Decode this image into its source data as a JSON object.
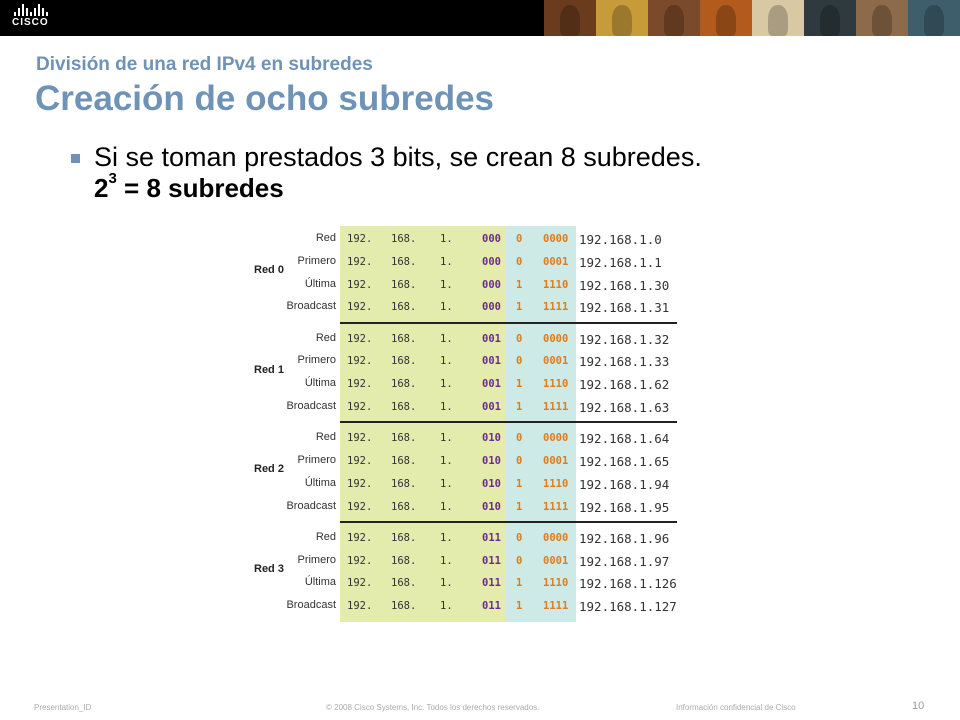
{
  "header": {
    "logo_text": "CISCO",
    "photos": [
      {
        "color": "#6b3b1e"
      },
      {
        "color": "#c79a3a"
      },
      {
        "color": "#7b4a2a"
      },
      {
        "color": "#b35a1d"
      },
      {
        "color": "#d9c8a4"
      },
      {
        "color": "#2e3a3e"
      },
      {
        "color": "#8c6a4a"
      },
      {
        "color": "#3f5e6c"
      }
    ]
  },
  "slide": {
    "subtitle": "División de una red IPv4 en subredes",
    "title": "Creación de ocho subredes",
    "bullet_text": "Si se toman prestados 3 bits, se crean 8 subredes.",
    "formula_base": "2",
    "formula_exp": "3",
    "formula_rest": " = 8 subredes"
  },
  "table": {
    "groups": [
      {
        "name": "Red 0",
        "rows": [
          {
            "label": "Red",
            "o1": "192.",
            "o2": "168.",
            "o3": "1.",
            "net": "000",
            "bit": "0",
            "host": "0000",
            "addr": "192.168.1.0"
          },
          {
            "label": "Primero",
            "o1": "192.",
            "o2": "168.",
            "o3": "1.",
            "net": "000",
            "bit": "0",
            "host": "0001",
            "addr": "192.168.1.1"
          },
          {
            "label": "Última",
            "o1": "192.",
            "o2": "168.",
            "o3": "1.",
            "net": "000",
            "bit": "1",
            "host": "1110",
            "addr": "192.168.1.30"
          },
          {
            "label": "Broadcast",
            "o1": "192.",
            "o2": "168.",
            "o3": "1.",
            "net": "000",
            "bit": "1",
            "host": "1111",
            "addr": "192.168.1.31"
          }
        ]
      },
      {
        "name": "Red 1",
        "rows": [
          {
            "label": "Red",
            "o1": "192.",
            "o2": "168.",
            "o3": "1.",
            "net": "001",
            "bit": "0",
            "host": "0000",
            "addr": "192.168.1.32"
          },
          {
            "label": "Primero",
            "o1": "192.",
            "o2": "168.",
            "o3": "1.",
            "net": "001",
            "bit": "0",
            "host": "0001",
            "addr": "192.168.1.33"
          },
          {
            "label": "Última",
            "o1": "192.",
            "o2": "168.",
            "o3": "1.",
            "net": "001",
            "bit": "1",
            "host": "1110",
            "addr": "192.168.1.62"
          },
          {
            "label": "Broadcast",
            "o1": "192.",
            "o2": "168.",
            "o3": "1.",
            "net": "001",
            "bit": "1",
            "host": "1111",
            "addr": "192.168.1.63"
          }
        ]
      },
      {
        "name": "Red 2",
        "rows": [
          {
            "label": "Red",
            "o1": "192.",
            "o2": "168.",
            "o3": "1.",
            "net": "010",
            "bit": "0",
            "host": "0000",
            "addr": "192.168.1.64"
          },
          {
            "label": "Primero",
            "o1": "192.",
            "o2": "168.",
            "o3": "1.",
            "net": "010",
            "bit": "0",
            "host": "0001",
            "addr": "192.168.1.65"
          },
          {
            "label": "Última",
            "o1": "192.",
            "o2": "168.",
            "o3": "1.",
            "net": "010",
            "bit": "1",
            "host": "1110",
            "addr": "192.168.1.94"
          },
          {
            "label": "Broadcast",
            "o1": "192.",
            "o2": "168.",
            "o3": "1.",
            "net": "010",
            "bit": "1",
            "host": "1111",
            "addr": "192.168.1.95"
          }
        ]
      },
      {
        "name": "Red 3",
        "rows": [
          {
            "label": "Red",
            "o1": "192.",
            "o2": "168.",
            "o3": "1.",
            "net": "011",
            "bit": "0",
            "host": "0000",
            "addr": "192.168.1.96"
          },
          {
            "label": "Primero",
            "o1": "192.",
            "o2": "168.",
            "o3": "1.",
            "net": "011",
            "bit": "0",
            "host": "0001",
            "addr": "192.168.1.97"
          },
          {
            "label": "Última",
            "o1": "192.",
            "o2": "168.",
            "o3": "1.",
            "net": "011",
            "bit": "1",
            "host": "1110",
            "addr": "192.168.1.126"
          },
          {
            "label": "Broadcast",
            "o1": "192.",
            "o2": "168.",
            "o3": "1.",
            "net": "011",
            "bit": "1",
            "host": "1111",
            "addr": "192.168.1.127"
          }
        ]
      }
    ]
  },
  "footer": {
    "presentation_id": "Presentation_ID",
    "copyright": "© 2008 Cisco Systems, Inc. Todos los derechos reservados.",
    "confidential": "Información confidencial de Cisco",
    "page": "10"
  }
}
